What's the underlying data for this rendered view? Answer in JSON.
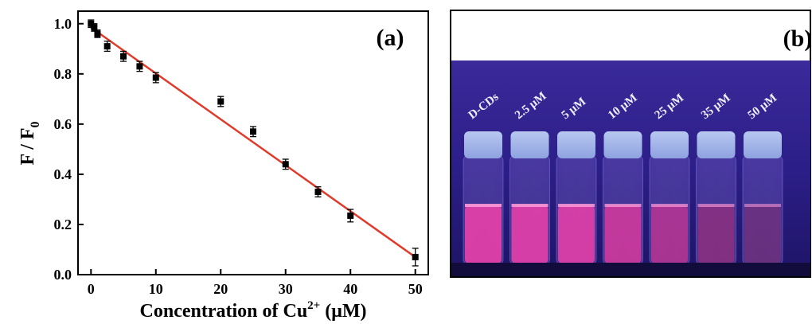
{
  "chart_data": {
    "type": "scatter",
    "panel_label": "(a)",
    "xlabel_main": "Concentration of Cu",
    "xlabel_sup": "2+",
    "xlabel_unit": " (μM)",
    "ylabel_main": "F / F",
    "ylabel_sub": "0",
    "xlim": [
      -2,
      52
    ],
    "ylim": [
      0,
      1.05
    ],
    "xticks": [
      0,
      10,
      20,
      30,
      40,
      50
    ],
    "yticks": [
      0.0,
      0.2,
      0.4,
      0.6,
      0.8,
      1.0
    ],
    "ytick_labels": [
      "0.0",
      "0.2",
      "0.4",
      "0.6",
      "0.8",
      "1.0"
    ],
    "series": [
      {
        "x": [
          0,
          0.5,
          1,
          2.5,
          5,
          7.5,
          10,
          20,
          25,
          30,
          35,
          40,
          50
        ],
        "y": [
          1.0,
          0.985,
          0.96,
          0.91,
          0.87,
          0.83,
          0.785,
          0.69,
          0.57,
          0.44,
          0.33,
          0.235,
          0.07
        ],
        "yerr": [
          0.015,
          0.015,
          0.015,
          0.02,
          0.02,
          0.02,
          0.02,
          0.02,
          0.02,
          0.02,
          0.02,
          0.025,
          0.035
        ]
      }
    ],
    "fit_line": {
      "x": [
        0,
        50
      ],
      "y": [
        0.985,
        0.07
      ],
      "color": "#e03a2a"
    },
    "marker_color": "#000000"
  },
  "photo": {
    "panel_label": "(b)",
    "vials": [
      {
        "label": "D-CDs",
        "liquid_color": "#e040a8",
        "glow": 1.0
      },
      {
        "label": "2.5 μM",
        "liquid_color": "#e040a8",
        "glow": 0.95
      },
      {
        "label": "5 μM",
        "liquid_color": "#e040a8",
        "glow": 0.9
      },
      {
        "label": "10 μM",
        "liquid_color": "#d83a9e",
        "glow": 0.75
      },
      {
        "label": "25 μM",
        "liquid_color": "#c43592",
        "glow": 0.6
      },
      {
        "label": "35 μM",
        "liquid_color": "#9a2e7c",
        "glow": 0.45
      },
      {
        "label": "50 μM",
        "liquid_color": "#7a3078",
        "glow": 0.3
      }
    ]
  }
}
